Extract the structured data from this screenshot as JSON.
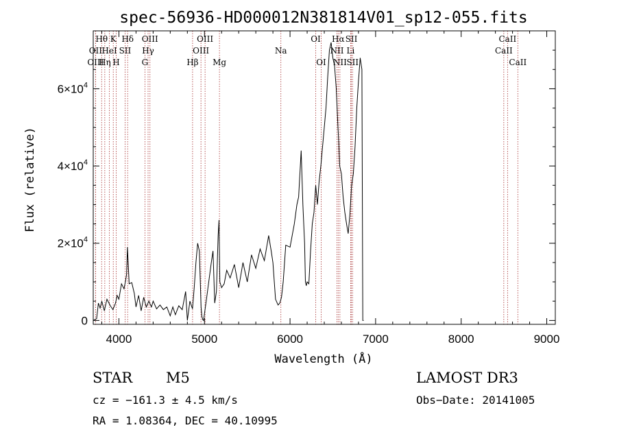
{
  "chart_data": {
    "type": "line",
    "title": "spec-56936-HD000012N381814V01_sp12-055.fits",
    "xlabel": "Wavelength (Å)",
    "ylabel": "Flux (relative)",
    "xlim": [
      3700,
      9100
    ],
    "ylim": [
      -1000,
      75000
    ],
    "x_ticks": [
      {
        "value": 4000,
        "label": "4000"
      },
      {
        "value": 5000,
        "label": "5000"
      },
      {
        "value": 6000,
        "label": "6000"
      },
      {
        "value": 7000,
        "label": "7000"
      },
      {
        "value": 8000,
        "label": "8000"
      },
      {
        "value": 9000,
        "label": "9000"
      }
    ],
    "y_ticks": [
      {
        "value": 0,
        "label": "0"
      },
      {
        "value": 20000,
        "label": "2×10",
        "exp": "4"
      },
      {
        "value": 40000,
        "label": "4×10",
        "exp": "4"
      },
      {
        "value": 60000,
        "label": "6×10",
        "exp": "4"
      }
    ],
    "spectrum": {
      "name": "flux",
      "x": [
        3700,
        3740,
        3760,
        3780,
        3800,
        3830,
        3860,
        3900,
        3930,
        3960,
        3980,
        4000,
        4030,
        4060,
        4080,
        4090,
        4100,
        4120,
        4150,
        4180,
        4200,
        4230,
        4260,
        4290,
        4320,
        4350,
        4380,
        4400,
        4440,
        4480,
        4520,
        4560,
        4600,
        4630,
        4660,
        4700,
        4740,
        4780,
        4800,
        4830,
        4860,
        4880,
        4900,
        4920,
        4940,
        4960,
        4970,
        4980,
        4990,
        5000,
        5020,
        5050,
        5080,
        5100,
        5120,
        5140,
        5160,
        5170,
        5180,
        5200,
        5230,
        5260,
        5300,
        5350,
        5400,
        5450,
        5500,
        5550,
        5600,
        5650,
        5700,
        5750,
        5780,
        5800,
        5830,
        5860,
        5880,
        5900,
        5920,
        5950,
        6000,
        6050,
        6080,
        6100,
        6130,
        6150,
        6170,
        6180,
        6190,
        6200,
        6220,
        6240,
        6260,
        6280,
        6300,
        6320,
        6340,
        6360,
        6380,
        6400,
        6420,
        6440,
        6460,
        6480,
        6500,
        6520,
        6540,
        6560,
        6570,
        6580,
        6600,
        6620,
        6640,
        6660,
        6680,
        6700,
        6720,
        6740,
        6760,
        6780,
        6800,
        6820,
        6840,
        6850,
        6860
      ],
      "values": [
        0,
        500,
        4500,
        3200,
        5000,
        2500,
        5500,
        3800,
        2800,
        4500,
        6500,
        5500,
        9500,
        8200,
        10500,
        12000,
        19000,
        9500,
        9800,
        7000,
        3500,
        6500,
        2500,
        6000,
        3500,
        5000,
        3500,
        5000,
        3000,
        4000,
        2800,
        3500,
        1200,
        3500,
        1500,
        3800,
        2800,
        7500,
        0,
        5000,
        3000,
        8500,
        15000,
        20000,
        18000,
        3500,
        1000,
        200,
        0,
        1800,
        5000,
        10000,
        15000,
        18000,
        4500,
        7500,
        22000,
        26000,
        10000,
        8500,
        9500,
        13000,
        11000,
        14500,
        8500,
        15000,
        10000,
        17000,
        13500,
        18500,
        15500,
        22000,
        18000,
        15000,
        5500,
        4000,
        4500,
        6000,
        10000,
        19500,
        19000,
        25000,
        30000,
        32000,
        44000,
        30000,
        20000,
        10000,
        9000,
        10000,
        9500,
        18000,
        25000,
        28000,
        35000,
        30000,
        36000,
        40000,
        45000,
        50000,
        55000,
        63000,
        70000,
        72000,
        68000,
        66000,
        60000,
        50000,
        46000,
        40000,
        38000,
        32000,
        28000,
        25000,
        22500,
        27500,
        35000,
        38000,
        45000,
        55000,
        62000,
        68000,
        65000,
        0,
        0
      ]
    },
    "lines": [
      {
        "label": "Hθ",
        "wavelength": 3798,
        "row": 0
      },
      {
        "label": "K",
        "wavelength": 3934,
        "row": 0
      },
      {
        "label": "Hδ",
        "wavelength": 4102,
        "row": 0
      },
      {
        "label": "OIII",
        "wavelength": 4363,
        "row": 0
      },
      {
        "label": "OIII",
        "wavelength": 5007,
        "row": 0
      },
      {
        "label": "OI",
        "wavelength": 6300,
        "row": 0
      },
      {
        "label": "Hα",
        "wavelength": 6563,
        "row": 0
      },
      {
        "label": "SII",
        "wavelength": 6717,
        "row": 0
      },
      {
        "label": "CaII",
        "wavelength": 8542,
        "row": 0
      },
      {
        "label": "OII",
        "wavelength": 3727,
        "row": 1
      },
      {
        "label": "HeI",
        "wavelength": 3889,
        "row": 1
      },
      {
        "label": "SII",
        "wavelength": 4072,
        "row": 1
      },
      {
        "label": "Hγ",
        "wavelength": 4341,
        "row": 1
      },
      {
        "label": "OIII",
        "wavelength": 4959,
        "row": 1
      },
      {
        "label": "Na",
        "wavelength": 5893,
        "row": 1
      },
      {
        "label": "NII",
        "wavelength": 6548,
        "row": 1
      },
      {
        "label": "Li",
        "wavelength": 6708,
        "row": 1
      },
      {
        "label": "CaII",
        "wavelength": 8498,
        "row": 1
      },
      {
        "label": "OIII",
        "wavelength": 3727,
        "row": 2
      },
      {
        "label": "Hη",
        "wavelength": 3835,
        "row": 2
      },
      {
        "label": "H",
        "wavelength": 3968,
        "row": 2
      },
      {
        "label": "G",
        "wavelength": 4304,
        "row": 2
      },
      {
        "label": "Hβ",
        "wavelength": 4861,
        "row": 2
      },
      {
        "label": "Mg",
        "wavelength": 5175,
        "row": 2
      },
      {
        "label": "OI",
        "wavelength": 6364,
        "row": 2
      },
      {
        "label": "NII",
        "wavelength": 6583,
        "row": 2
      },
      {
        "label": "SII",
        "wavelength": 6731,
        "row": 2
      },
      {
        "label": "CaII",
        "wavelength": 8662,
        "row": 2
      }
    ]
  },
  "footer": {
    "object_class": "STAR",
    "subclass": "M5",
    "survey": "LAMOST DR3",
    "redshift_text": "cz = −161.3 ± 4.5 km/s",
    "obs_date_text": "Obs−Date: 20141005",
    "coords_text": "RA =   1.08364, DEC =  40.10995"
  },
  "colors": {
    "axis": "#000000",
    "spectrum": "#000000",
    "line_marker": "#a52a2a"
  }
}
